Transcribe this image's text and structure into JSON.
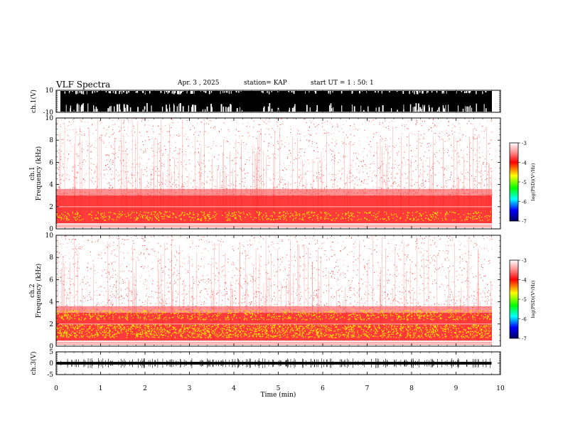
{
  "header": {
    "title": "VLF Spectra",
    "date": "Apr. 3 , 2025",
    "station": "station= KAP",
    "start": "start UT = 1 : 50: 1"
  },
  "colors": {
    "cmap": [
      "#ffffff",
      "#ff6060",
      "#ff0000",
      "#ffff00",
      "#00ff00",
      "#00ffff",
      "#0000ff",
      "#000080"
    ]
  },
  "chart_data": [
    {
      "type": "line",
      "name": "ch1-waveform",
      "ylabel": "ch.1(V)",
      "ylim": [
        -10,
        10
      ],
      "yticks": [
        "10",
        "-10"
      ],
      "xlim": [
        0,
        10
      ],
      "description_level": "saturated black waveform spanning full range"
    },
    {
      "type": "heatmap",
      "name": "ch1-spectrogram",
      "ylabel_channel": "ch.1",
      "ylabel": "Frequency (kHz)",
      "ylim": [
        0,
        10
      ],
      "yticks": [
        "0",
        "2",
        "4",
        "6",
        "8",
        "10"
      ],
      "xlim": [
        0,
        10
      ],
      "colorbar": {
        "label": "log(PSD)(V²/Hz)",
        "range": [
          -7,
          -3
        ],
        "ticks": [
          "-3",
          "-4",
          "-5",
          "-6",
          "-7"
        ]
      },
      "bands": [
        {
          "from": 0.5,
          "to": 1.5,
          "level": "yellow-red"
        },
        {
          "from": 1.5,
          "to": 3.5,
          "level": "red"
        }
      ]
    },
    {
      "type": "heatmap",
      "name": "ch2-spectrogram",
      "ylabel_channel": "ch.2",
      "ylabel": "Frequency (kHz)",
      "ylim": [
        0,
        10
      ],
      "yticks": [
        "0",
        "2",
        "4",
        "6",
        "8",
        "10"
      ],
      "xlim": [
        0,
        10
      ],
      "colorbar": {
        "label": "log(PSD)(V²/Hz)",
        "range": [
          -7,
          -3
        ],
        "ticks": [
          "-3",
          "-4",
          "-5",
          "-6",
          "-7"
        ]
      },
      "bands": [
        {
          "from": 0.5,
          "to": 2.0,
          "level": "yellow"
        },
        {
          "from": 2.5,
          "to": 3.5,
          "level": "yellow-red"
        }
      ]
    },
    {
      "type": "line",
      "name": "ch3-waveform",
      "ylabel": "ch.3(V)",
      "ylim": [
        -5,
        5
      ],
      "yticks": [
        "5",
        "0",
        "-5"
      ],
      "xlim": [
        0,
        10
      ],
      "data_end_min": 9.8
    }
  ],
  "x_axis": {
    "label": "Time (min)",
    "ticks": [
      "0",
      "1",
      "2",
      "3",
      "4",
      "5",
      "6",
      "7",
      "8",
      "9",
      "10"
    ]
  }
}
